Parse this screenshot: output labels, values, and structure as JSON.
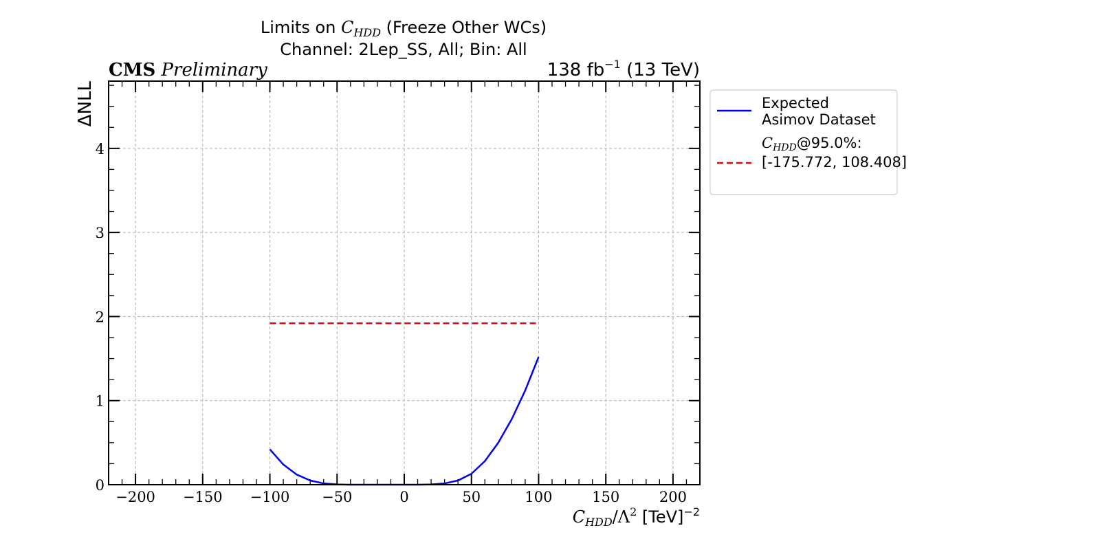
{
  "chart_data": {
    "type": "line",
    "title_line1_prefix": "Limits on ",
    "title_wc_symbol": "C",
    "title_wc_subscript": "HDD",
    "title_line1_suffix": " (Freeze Other WCs)",
    "title_line2": "Channel: 2Lep_SS, All; Bin: All",
    "experiment_label": "CMS",
    "status_label": "Preliminary",
    "lumi_prefix": "138 fb",
    "lumi_exponent": "−1",
    "lumi_suffix": " (13 TeV)",
    "xlabel_symbol": "C",
    "xlabel_subscript": "HDD",
    "xlabel_middle": "/Λ",
    "xlabel_middle_exp": "2",
    "xlabel_units": " [TeV]",
    "xlabel_units_exp": "−2",
    "ylabel": "ΔNLL",
    "xlim": [
      -220,
      220
    ],
    "ylim": [
      0,
      4.8
    ],
    "xticks": [
      -200,
      -150,
      -100,
      -50,
      0,
      50,
      100,
      150,
      200
    ],
    "xtick_labels": [
      "−200",
      "−150",
      "−100",
      "−50",
      "0",
      "50",
      "100",
      "150",
      "200"
    ],
    "yticks": [
      0,
      1,
      2,
      3,
      4
    ],
    "ytick_labels": [
      "0",
      "1",
      "2",
      "3",
      "4"
    ],
    "grid": true,
    "legend_position": "outside-right",
    "series": [
      {
        "name_line1": "Expected",
        "name_line2": "Asimov Dataset",
        "color": "#0000ee",
        "style": "solid",
        "x": [
          -100,
          -90,
          -80,
          -70,
          -60,
          -50,
          -40,
          -30,
          -20,
          -10,
          0,
          10,
          20,
          30,
          40,
          50,
          60,
          70,
          80,
          90,
          100
        ],
        "y": [
          0.42,
          0.24,
          0.12,
          0.05,
          0.015,
          0.003,
          0.0,
          0.0,
          0.0,
          0.0,
          0.0,
          0.0,
          0.003,
          0.015,
          0.05,
          0.13,
          0.28,
          0.5,
          0.78,
          1.12,
          1.52
        ]
      },
      {
        "name_prefix_symbol": "C",
        "name_prefix_subscript": "HDD",
        "name_line1": "@95.0%:",
        "name_line2": "[-175.772, 108.408]",
        "color": "#ee0000",
        "style": "dashed",
        "x": [
          -100,
          100
        ],
        "y": [
          1.92,
          1.92
        ]
      }
    ]
  }
}
